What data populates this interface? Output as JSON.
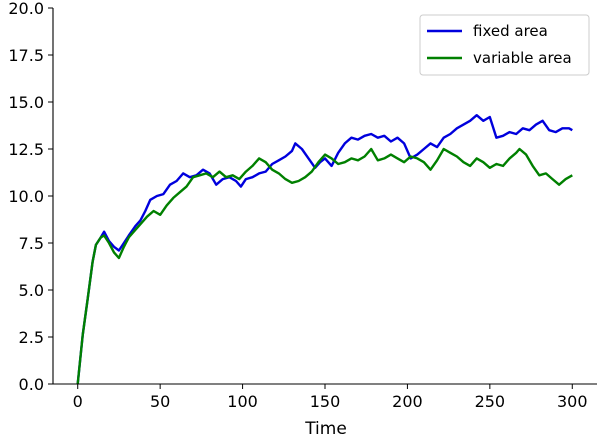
{
  "chart_data": {
    "type": "line",
    "title": "",
    "xlabel": "Time",
    "ylabel": "",
    "xlim": [
      -15,
      315
    ],
    "ylim": [
      0,
      20
    ],
    "xticks": [
      0,
      50,
      100,
      150,
      200,
      250,
      300
    ],
    "yticks": [
      0.0,
      2.5,
      5.0,
      7.5,
      10.0,
      12.5,
      15.0,
      17.5,
      20.0
    ],
    "xtick_labels": [
      "0",
      "50",
      "100",
      "150",
      "200",
      "250",
      "300"
    ],
    "ytick_labels": [
      "0.0",
      "2.5",
      "5.0",
      "7.5",
      "10.0",
      "12.5",
      "15.0",
      "17.5",
      "20.0"
    ],
    "grid": false,
    "legend": "top-right",
    "series": [
      {
        "name": "fixed area",
        "color": "#0000dd",
        "points": [
          [
            0,
            0
          ],
          [
            3,
            2.6
          ],
          [
            6,
            4.5
          ],
          [
            9,
            6.5
          ],
          [
            11,
            7.4
          ],
          [
            14,
            7.8
          ],
          [
            16,
            8.1
          ],
          [
            19,
            7.6
          ],
          [
            22,
            7.3
          ],
          [
            25,
            7.1
          ],
          [
            28,
            7.5
          ],
          [
            31,
            7.9
          ],
          [
            35,
            8.4
          ],
          [
            38,
            8.7
          ],
          [
            41,
            9.2
          ],
          [
            44,
            9.8
          ],
          [
            48,
            10.0
          ],
          [
            52,
            10.1
          ],
          [
            56,
            10.6
          ],
          [
            60,
            10.8
          ],
          [
            64,
            11.2
          ],
          [
            68,
            11.0
          ],
          [
            72,
            11.1
          ],
          [
            76,
            11.4
          ],
          [
            80,
            11.2
          ],
          [
            84,
            10.6
          ],
          [
            88,
            10.9
          ],
          [
            92,
            11.0
          ],
          [
            96,
            10.8
          ],
          [
            99,
            10.5
          ],
          [
            102,
            10.9
          ],
          [
            106,
            11.0
          ],
          [
            110,
            11.2
          ],
          [
            114,
            11.3
          ],
          [
            118,
            11.7
          ],
          [
            122,
            11.9
          ],
          [
            126,
            12.1
          ],
          [
            130,
            12.4
          ],
          [
            132,
            12.8
          ],
          [
            136,
            12.5
          ],
          [
            140,
            12.0
          ],
          [
            144,
            11.5
          ],
          [
            147,
            11.8
          ],
          [
            150,
            12.0
          ],
          [
            154,
            11.6
          ],
          [
            158,
            12.3
          ],
          [
            162,
            12.8
          ],
          [
            166,
            13.1
          ],
          [
            170,
            13.0
          ],
          [
            174,
            13.2
          ],
          [
            178,
            13.3
          ],
          [
            182,
            13.1
          ],
          [
            186,
            13.2
          ],
          [
            190,
            12.9
          ],
          [
            194,
            13.1
          ],
          [
            198,
            12.8
          ],
          [
            202,
            12.0
          ],
          [
            206,
            12.2
          ],
          [
            210,
            12.5
          ],
          [
            214,
            12.8
          ],
          [
            218,
            12.6
          ],
          [
            222,
            13.1
          ],
          [
            226,
            13.3
          ],
          [
            230,
            13.6
          ],
          [
            234,
            13.8
          ],
          [
            238,
            14.0
          ],
          [
            242,
            14.3
          ],
          [
            246,
            14.0
          ],
          [
            250,
            14.2
          ],
          [
            254,
            13.1
          ],
          [
            258,
            13.2
          ],
          [
            262,
            13.4
          ],
          [
            266,
            13.3
          ],
          [
            270,
            13.6
          ],
          [
            274,
            13.5
          ],
          [
            278,
            13.8
          ],
          [
            282,
            14.0
          ],
          [
            286,
            13.5
          ],
          [
            290,
            13.4
          ],
          [
            294,
            13.6
          ],
          [
            298,
            13.6
          ],
          [
            300,
            13.5
          ]
        ]
      },
      {
        "name": "variable area",
        "color": "#008000",
        "points": [
          [
            0,
            0
          ],
          [
            3,
            2.6
          ],
          [
            6,
            4.5
          ],
          [
            9,
            6.5
          ],
          [
            11,
            7.4
          ],
          [
            14,
            7.8
          ],
          [
            16,
            7.9
          ],
          [
            19,
            7.5
          ],
          [
            22,
            7.0
          ],
          [
            25,
            6.7
          ],
          [
            28,
            7.3
          ],
          [
            31,
            7.8
          ],
          [
            35,
            8.2
          ],
          [
            38,
            8.5
          ],
          [
            42,
            8.9
          ],
          [
            46,
            9.2
          ],
          [
            50,
            9.0
          ],
          [
            54,
            9.5
          ],
          [
            58,
            9.9
          ],
          [
            62,
            10.2
          ],
          [
            66,
            10.5
          ],
          [
            70,
            11.0
          ],
          [
            74,
            11.1
          ],
          [
            78,
            11.2
          ],
          [
            82,
            11.0
          ],
          [
            86,
            11.3
          ],
          [
            90,
            11.0
          ],
          [
            94,
            11.1
          ],
          [
            98,
            10.9
          ],
          [
            102,
            11.3
          ],
          [
            106,
            11.6
          ],
          [
            110,
            12.0
          ],
          [
            114,
            11.8
          ],
          [
            118,
            11.4
          ],
          [
            122,
            11.2
          ],
          [
            126,
            10.9
          ],
          [
            130,
            10.7
          ],
          [
            134,
            10.8
          ],
          [
            138,
            11.0
          ],
          [
            142,
            11.3
          ],
          [
            146,
            11.8
          ],
          [
            150,
            12.2
          ],
          [
            154,
            12.0
          ],
          [
            158,
            11.7
          ],
          [
            162,
            11.8
          ],
          [
            166,
            12.0
          ],
          [
            170,
            11.9
          ],
          [
            174,
            12.1
          ],
          [
            178,
            12.5
          ],
          [
            182,
            11.9
          ],
          [
            186,
            12.0
          ],
          [
            190,
            12.2
          ],
          [
            194,
            12.0
          ],
          [
            198,
            11.8
          ],
          [
            202,
            12.1
          ],
          [
            206,
            12.0
          ],
          [
            210,
            11.8
          ],
          [
            214,
            11.4
          ],
          [
            218,
            11.9
          ],
          [
            222,
            12.5
          ],
          [
            226,
            12.3
          ],
          [
            230,
            12.1
          ],
          [
            234,
            11.8
          ],
          [
            238,
            11.6
          ],
          [
            242,
            12.0
          ],
          [
            246,
            11.8
          ],
          [
            250,
            11.5
          ],
          [
            254,
            11.7
          ],
          [
            258,
            11.6
          ],
          [
            262,
            12.0
          ],
          [
            266,
            12.3
          ],
          [
            268,
            12.5
          ],
          [
            272,
            12.2
          ],
          [
            276,
            11.6
          ],
          [
            280,
            11.1
          ],
          [
            284,
            11.2
          ],
          [
            288,
            10.9
          ],
          [
            292,
            10.6
          ],
          [
            296,
            10.9
          ],
          [
            300,
            11.1
          ]
        ]
      }
    ]
  }
}
